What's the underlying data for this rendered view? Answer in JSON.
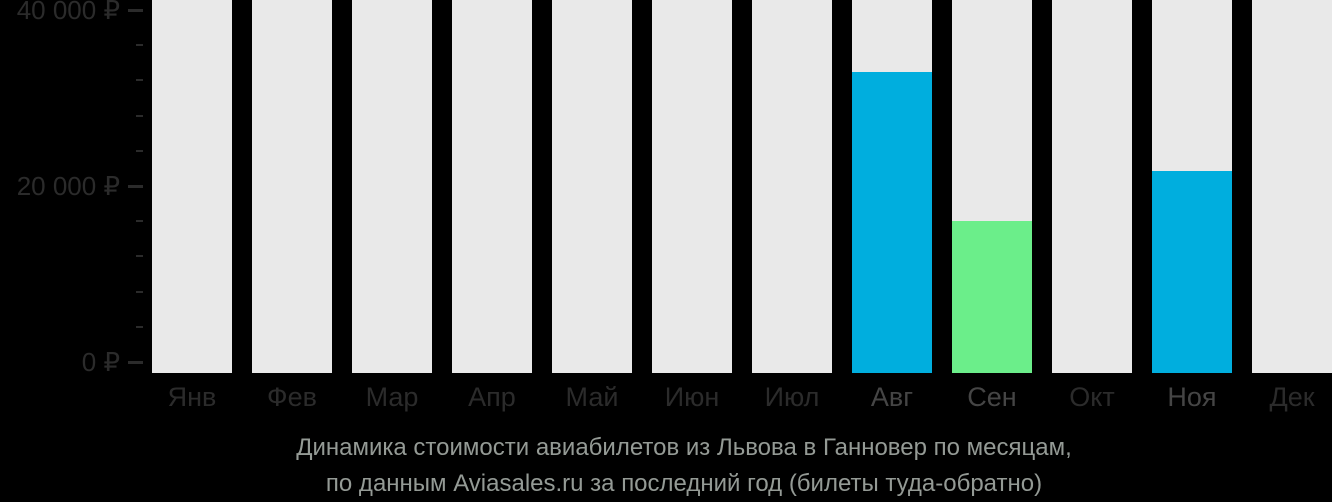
{
  "chart_data": {
    "type": "bar",
    "title": "Динамика стоимости авиабилетов из Львова в Ганновер по месяцам,",
    "subtitle": "по данным Aviasales.ru за последний год (билеты туда-обратно)",
    "categories": [
      "Янв",
      "Фев",
      "Мар",
      "Апр",
      "Май",
      "Июн",
      "Июл",
      "Авг",
      "Сен",
      "Окт",
      "Ноя",
      "Дек"
    ],
    "values": [
      null,
      null,
      null,
      null,
      null,
      null,
      null,
      33000,
      16000,
      null,
      21700,
      null
    ],
    "bar_colors": [
      null,
      null,
      null,
      null,
      null,
      null,
      null,
      "#00aede",
      "#6bee8a",
      null,
      "#00aede",
      null
    ],
    "xlabel": "",
    "ylabel": "",
    "ylim": [
      0,
      40000
    ],
    "ytick_major": 20000,
    "ytick_minor": 4000,
    "yticks": [
      {
        "value": 0,
        "label": "0 ₽"
      },
      {
        "value": 20000,
        "label": "20 000 ₽"
      },
      {
        "value": 40000,
        "label": "40 000 ₽"
      }
    ],
    "grid": false,
    "legend": "none",
    "currency": "₽"
  },
  "colors": {
    "background": "#000000",
    "column_track": "#e9e9e9",
    "bar_blue": "#00aede",
    "bar_green": "#6bee8a",
    "axis_text": "#2b2b2b",
    "tick_mark": "#2b2b2b",
    "month_label": "#2b2b2b",
    "month_label_active": "#454545",
    "caption_text": "#949a95"
  }
}
